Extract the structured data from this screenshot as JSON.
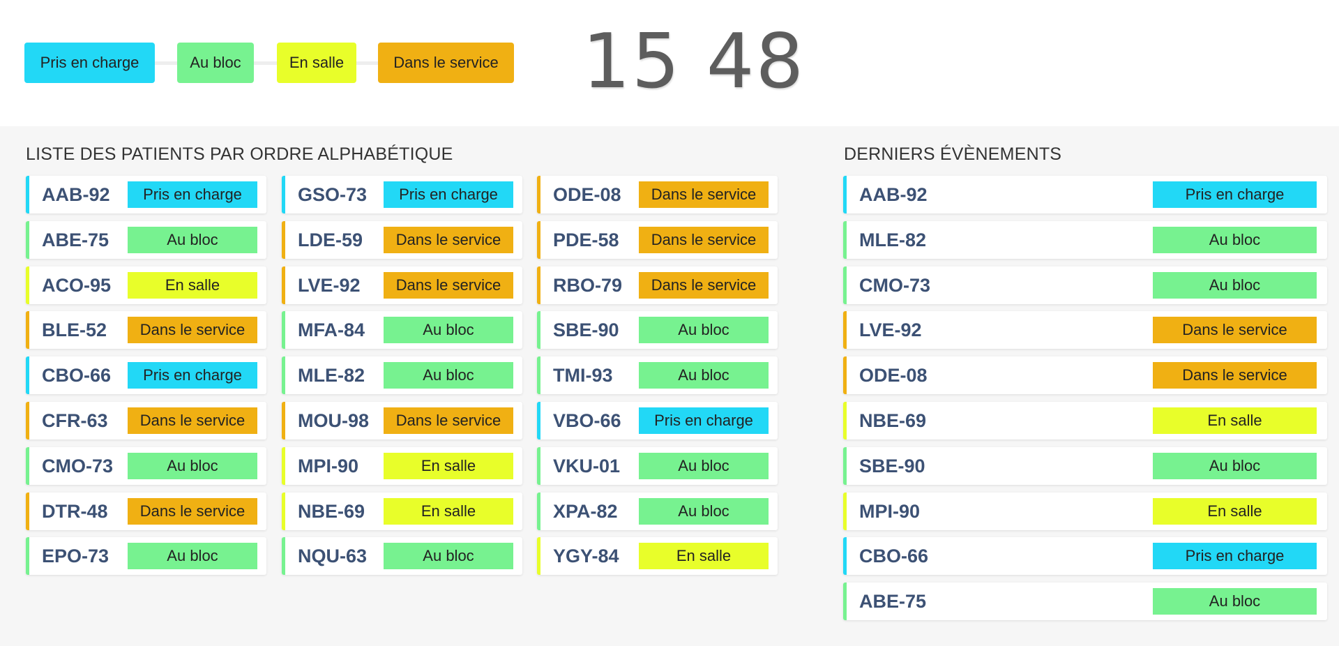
{
  "statuses": {
    "pris": {
      "label": "Pris en charge",
      "color": "#22d8f6"
    },
    "bloc": {
      "label": "Au bloc",
      "color": "#77f290"
    },
    "salle": {
      "label": "En salle",
      "color": "#e8fe2a"
    },
    "service": {
      "label": "Dans le service",
      "color": "#f0b013"
    }
  },
  "legend": [
    "pris",
    "bloc",
    "salle",
    "service"
  ],
  "clock": "15 48",
  "patients_title": "LISTE DES PATIENTS PAR ORDRE ALPHABÉTIQUE",
  "events_title": "DERNIERS ÉVÈNEMENTS",
  "patient_columns": [
    [
      {
        "id": "AAB-92",
        "status": "pris"
      },
      {
        "id": "ABE-75",
        "status": "bloc"
      },
      {
        "id": "ACO-95",
        "status": "salle"
      },
      {
        "id": "BLE-52",
        "status": "service"
      },
      {
        "id": "CBO-66",
        "status": "pris"
      },
      {
        "id": "CFR-63",
        "status": "service"
      },
      {
        "id": "CMO-73",
        "status": "bloc"
      },
      {
        "id": "DTR-48",
        "status": "service"
      },
      {
        "id": "EPO-73",
        "status": "bloc"
      }
    ],
    [
      {
        "id": "GSO-73",
        "status": "pris"
      },
      {
        "id": "LDE-59",
        "status": "service"
      },
      {
        "id": "LVE-92",
        "status": "service"
      },
      {
        "id": "MFA-84",
        "status": "bloc"
      },
      {
        "id": "MLE-82",
        "status": "bloc"
      },
      {
        "id": "MOU-98",
        "status": "service"
      },
      {
        "id": "MPI-90",
        "status": "salle"
      },
      {
        "id": "NBE-69",
        "status": "salle"
      },
      {
        "id": "NQU-63",
        "status": "bloc"
      }
    ],
    [
      {
        "id": "ODE-08",
        "status": "service"
      },
      {
        "id": "PDE-58",
        "status": "service"
      },
      {
        "id": "RBO-79",
        "status": "service"
      },
      {
        "id": "SBE-90",
        "status": "bloc"
      },
      {
        "id": "TMI-93",
        "status": "bloc"
      },
      {
        "id": "VBO-66",
        "status": "pris"
      },
      {
        "id": "VKU-01",
        "status": "bloc"
      },
      {
        "id": "XPA-82",
        "status": "bloc"
      },
      {
        "id": "YGY-84",
        "status": "salle"
      }
    ]
  ],
  "events": [
    {
      "id": "AAB-92",
      "status": "pris"
    },
    {
      "id": "MLE-82",
      "status": "bloc"
    },
    {
      "id": "CMO-73",
      "status": "bloc"
    },
    {
      "id": "LVE-92",
      "status": "service"
    },
    {
      "id": "ODE-08",
      "status": "service"
    },
    {
      "id": "NBE-69",
      "status": "salle"
    },
    {
      "id": "SBE-90",
      "status": "bloc"
    },
    {
      "id": "MPI-90",
      "status": "salle"
    },
    {
      "id": "CBO-66",
      "status": "pris"
    },
    {
      "id": "ABE-75",
      "status": "bloc"
    }
  ]
}
